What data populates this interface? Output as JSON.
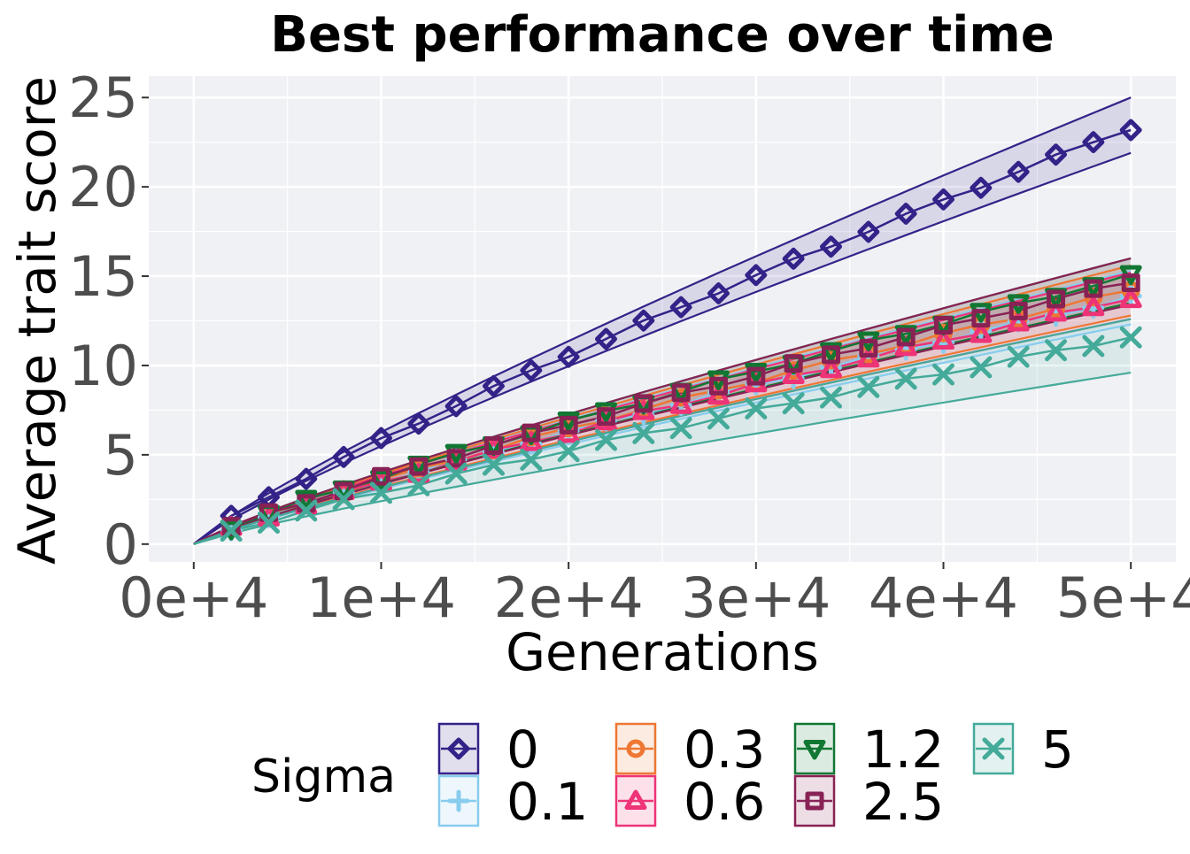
{
  "chart_data": {
    "type": "line",
    "title": "Best performance over time",
    "xlabel": "Generations",
    "ylabel": "Average trait score",
    "xlim": [
      -2400,
      52400
    ],
    "ylim": [
      -1.0,
      26.2
    ],
    "xticks": [
      0,
      10000,
      20000,
      30000,
      40000,
      50000
    ],
    "xtick_labels": [
      "0e+4",
      "1e+4",
      "2e+4",
      "3e+4",
      "4e+4",
      "5e+4"
    ],
    "yticks": [
      0,
      5,
      10,
      15,
      20,
      25
    ],
    "ytick_labels": [
      "0",
      "5",
      "10",
      "15",
      "20",
      "25"
    ],
    "grid": true,
    "panel_background": "#f0f1f5",
    "legend": {
      "title": "Sigma",
      "position": "bottom"
    },
    "x": [
      0,
      2000,
      4000,
      6000,
      8000,
      10000,
      12000,
      14000,
      16000,
      18000,
      20000,
      22000,
      24000,
      26000,
      28000,
      30000,
      32000,
      34000,
      36000,
      38000,
      40000,
      42000,
      44000,
      46000,
      48000,
      50000
    ],
    "series": [
      {
        "name": "0",
        "color": "#332288",
        "marker": "diamond",
        "final": 23.3,
        "final_low": 21.9,
        "final_high": 25.0
      },
      {
        "name": "0.1",
        "color": "#88ccee",
        "marker": "plus",
        "final": 13.8,
        "final_low": 12.3,
        "final_high": 15.3
      },
      {
        "name": "0.3",
        "color": "#ee7733",
        "marker": "circle",
        "final": 14.2,
        "final_low": 12.8,
        "final_high": 15.6
      },
      {
        "name": "0.6",
        "color": "#ee3377",
        "marker": "triangle-up",
        "final": 13.8,
        "final_low": 12.6,
        "final_high": 15.2
      },
      {
        "name": "1.2",
        "color": "#117733",
        "marker": "triangle-down",
        "final": 15.0,
        "final_low": 13.5,
        "final_high": 16.0
      },
      {
        "name": "2.5",
        "color": "#882255",
        "marker": "square",
        "final": 14.7,
        "final_low": 13.4,
        "final_high": 16.0
      },
      {
        "name": "5",
        "color": "#44aa99",
        "marker": "cross",
        "final": 11.6,
        "final_low": 9.6,
        "final_high": 12.6
      }
    ]
  }
}
